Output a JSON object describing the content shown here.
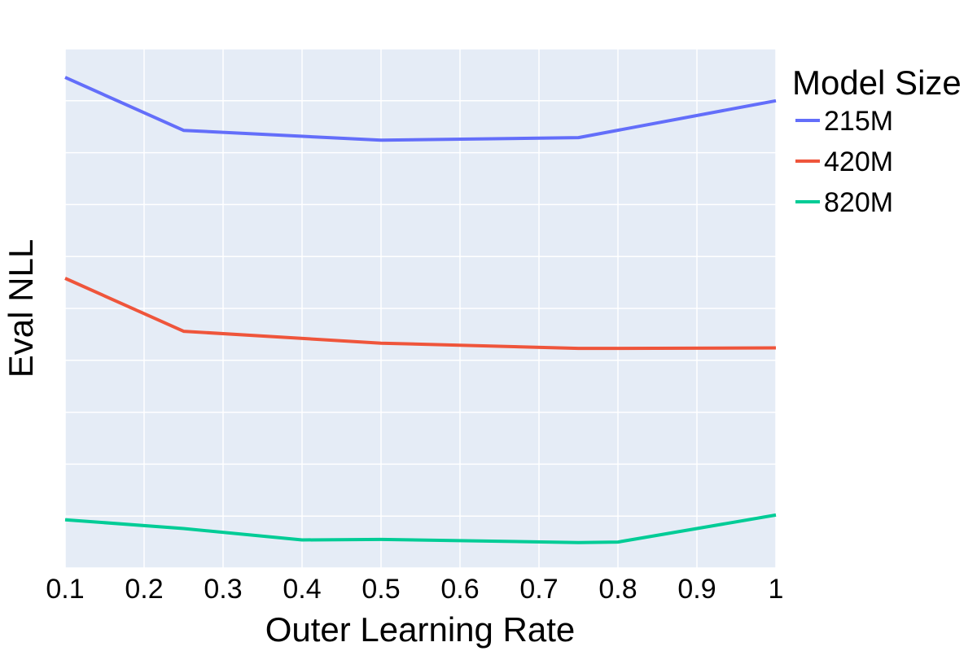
{
  "chart_data": {
    "type": "line",
    "title": "",
    "xlabel": "Outer Learning Rate",
    "ylabel": "Eval NLL",
    "xlim": [
      0.1,
      1.0
    ],
    "ylim": [
      0,
      10
    ],
    "x_ticks": [
      "0.1",
      "0.2",
      "0.3",
      "0.4",
      "0.5",
      "0.6",
      "0.7",
      "0.8",
      "0.9",
      "1"
    ],
    "y_tick_labels_shown": false,
    "grid": true,
    "legend": {
      "title": "Model Size",
      "position": "right"
    },
    "series": [
      {
        "name": "215M",
        "color": "#636efa",
        "x": [
          0.1,
          0.25,
          0.5,
          0.75,
          1.0
        ],
        "y": [
          9.45,
          8.43,
          8.24,
          8.29,
          9.0
        ]
      },
      {
        "name": "420M",
        "color": "#ef553b",
        "x": [
          0.1,
          0.25,
          0.5,
          0.75,
          0.8,
          1.0
        ],
        "y": [
          5.58,
          4.56,
          4.33,
          4.23,
          4.23,
          4.24
        ]
      },
      {
        "name": "820M",
        "color": "#00cc96",
        "x": [
          0.1,
          0.25,
          0.4,
          0.5,
          0.75,
          0.8,
          1.0
        ],
        "y": [
          0.93,
          0.76,
          0.54,
          0.55,
          0.49,
          0.5,
          1.02
        ]
      }
    ]
  }
}
